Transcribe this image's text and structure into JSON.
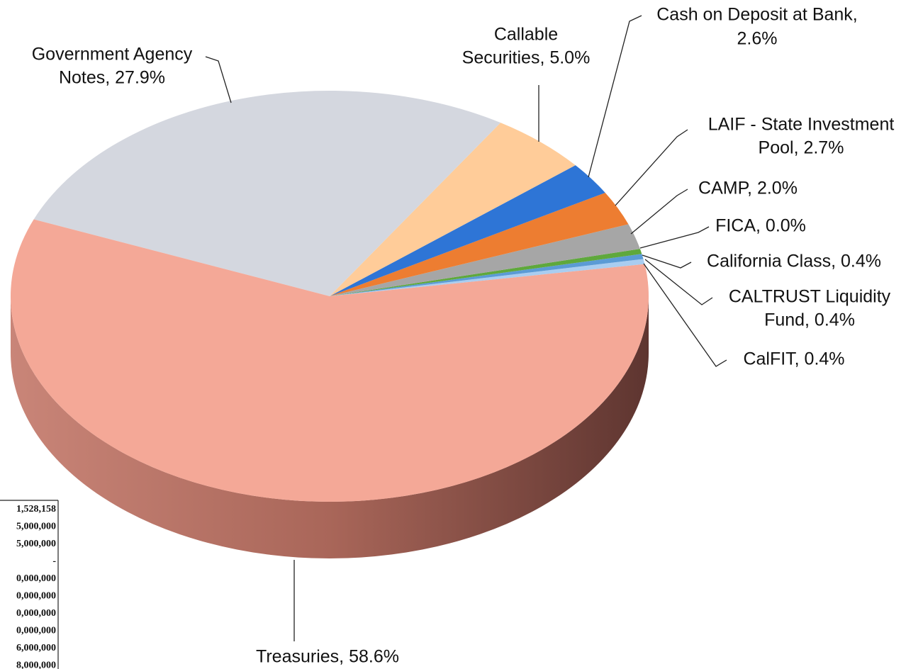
{
  "chart_data": {
    "type": "pie",
    "labels": [
      [
        "CalFIT, 0.4%"
      ],
      [
        "CALTRUST Liquidity",
        "Fund, 0.4%"
      ],
      [
        "California Class, 0.4%"
      ],
      [
        "FICA, 0.0%"
      ],
      [
        "CAMP, 2.0%"
      ],
      [
        "LAIF - State Investment",
        "Pool, 2.7%"
      ],
      [
        "Cash on Deposit at Bank,",
        "2.6%"
      ],
      [
        "Callable",
        "Securities, 5.0%"
      ],
      [
        "Government Agency",
        "Notes, 27.9%"
      ],
      [
        "Treasuries, 58.6%"
      ]
    ],
    "values": [
      0.4,
      0.4,
      0.4,
      0.0,
      2.0,
      2.7,
      2.6,
      5.0,
      27.9,
      58.6
    ],
    "colors": [
      "#a9cdf0",
      "#5b9bd5",
      "#5fa83c",
      "#2f5597",
      "#a6a6a6",
      "#ed7d31",
      "#2e75d6",
      "#ffcc99",
      "#d4d7df",
      "#f4a897"
    ],
    "side_color": "#8f5248"
  },
  "clipped_table": [
    "1,528,158",
    "5,000,000",
    "5,000,000",
    "-",
    "0,000,000",
    "0,000,000",
    "0,000,000",
    "0,000,000",
    "6,000,000",
    "8,000,000"
  ]
}
